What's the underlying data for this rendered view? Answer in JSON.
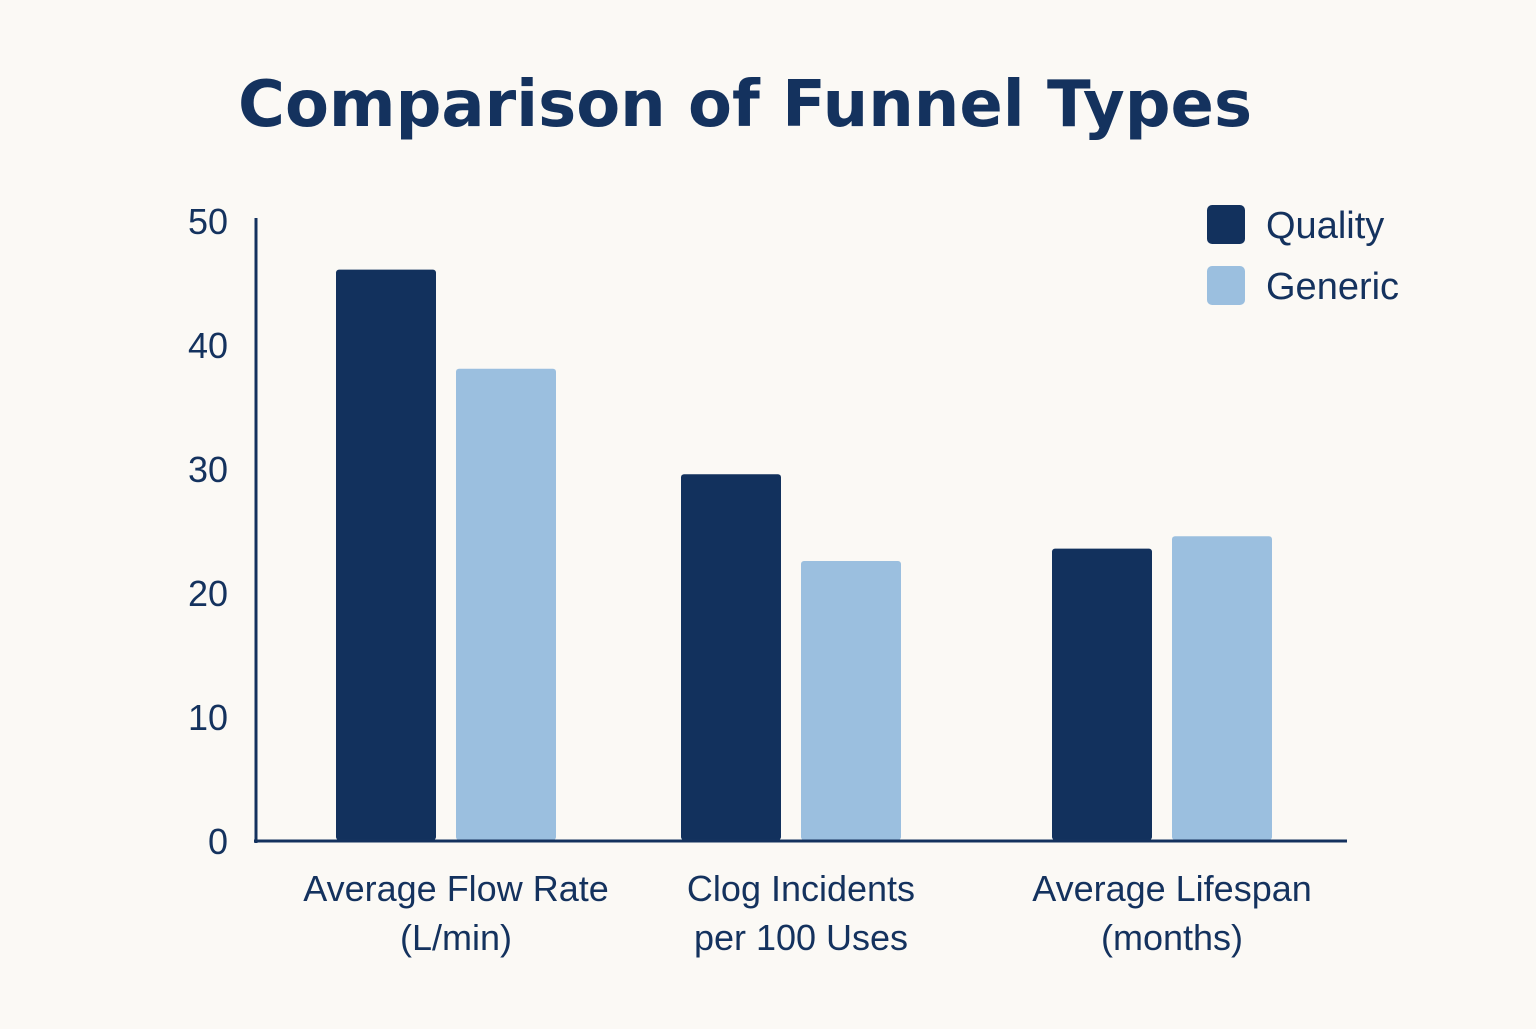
{
  "chart_data": {
    "type": "bar",
    "title": "Comparison of Funnel Types",
    "xlabel": "",
    "ylabel": "",
    "ylim": [
      0,
      50
    ],
    "yticks": [
      0,
      10,
      20,
      30,
      40,
      50
    ],
    "grid": false,
    "legend_position": "top-right",
    "categories": [
      [
        "Average Flow Rate",
        "(L/min)"
      ],
      [
        "Clog Incidents",
        "per 100 Uses"
      ],
      [
        "Average Lifespan",
        "(months)"
      ]
    ],
    "series": [
      {
        "name": "Quality",
        "color": "#12315d",
        "values": [
          46,
          29.5,
          23.5
        ]
      },
      {
        "name": "Generic",
        "color": "#9bbfdf",
        "values": [
          38,
          22.5,
          24.5
        ]
      }
    ]
  }
}
